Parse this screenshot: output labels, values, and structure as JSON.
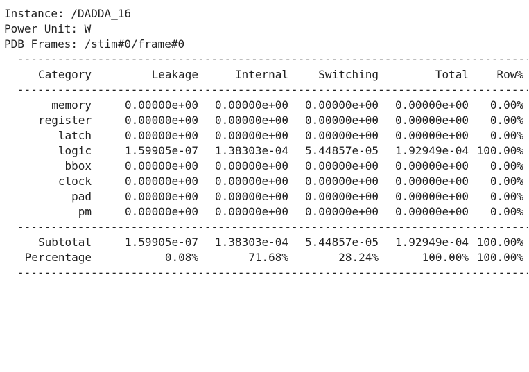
{
  "header": {
    "instance": "Instance: /DADDA_16",
    "power_unit": "Power Unit: W",
    "pdb_frames": "PDB Frames: /stim#0/frame#0"
  },
  "separator": "----------------------------------------------------------------------------------------------------",
  "columns": [
    "Category",
    "Leakage",
    "Internal",
    "Switching",
    "Total",
    "Row%"
  ],
  "rows": [
    [
      "memory",
      "0.00000e+00",
      "0.00000e+00",
      "0.00000e+00",
      "0.00000e+00",
      "0.00%"
    ],
    [
      "register",
      "0.00000e+00",
      "0.00000e+00",
      "0.00000e+00",
      "0.00000e+00",
      "0.00%"
    ],
    [
      "latch",
      "0.00000e+00",
      "0.00000e+00",
      "0.00000e+00",
      "0.00000e+00",
      "0.00%"
    ],
    [
      "logic",
      "1.59905e-07",
      "1.38303e-04",
      "5.44857e-05",
      "1.92949e-04",
      "100.00%"
    ],
    [
      "bbox",
      "0.00000e+00",
      "0.00000e+00",
      "0.00000e+00",
      "0.00000e+00",
      "0.00%"
    ],
    [
      "clock",
      "0.00000e+00",
      "0.00000e+00",
      "0.00000e+00",
      "0.00000e+00",
      "0.00%"
    ],
    [
      "pad",
      "0.00000e+00",
      "0.00000e+00",
      "0.00000e+00",
      "0.00000e+00",
      "0.00%"
    ],
    [
      "pm",
      "0.00000e+00",
      "0.00000e+00",
      "0.00000e+00",
      "0.00000e+00",
      "0.00%"
    ]
  ],
  "summary": [
    [
      "Subtotal",
      "1.59905e-07",
      "1.38303e-04",
      "5.44857e-05",
      "1.92949e-04",
      "100.00%"
    ],
    [
      "Percentage",
      "0.08%",
      "71.68%",
      "28.24%",
      "100.00%",
      "100.00%"
    ]
  ]
}
